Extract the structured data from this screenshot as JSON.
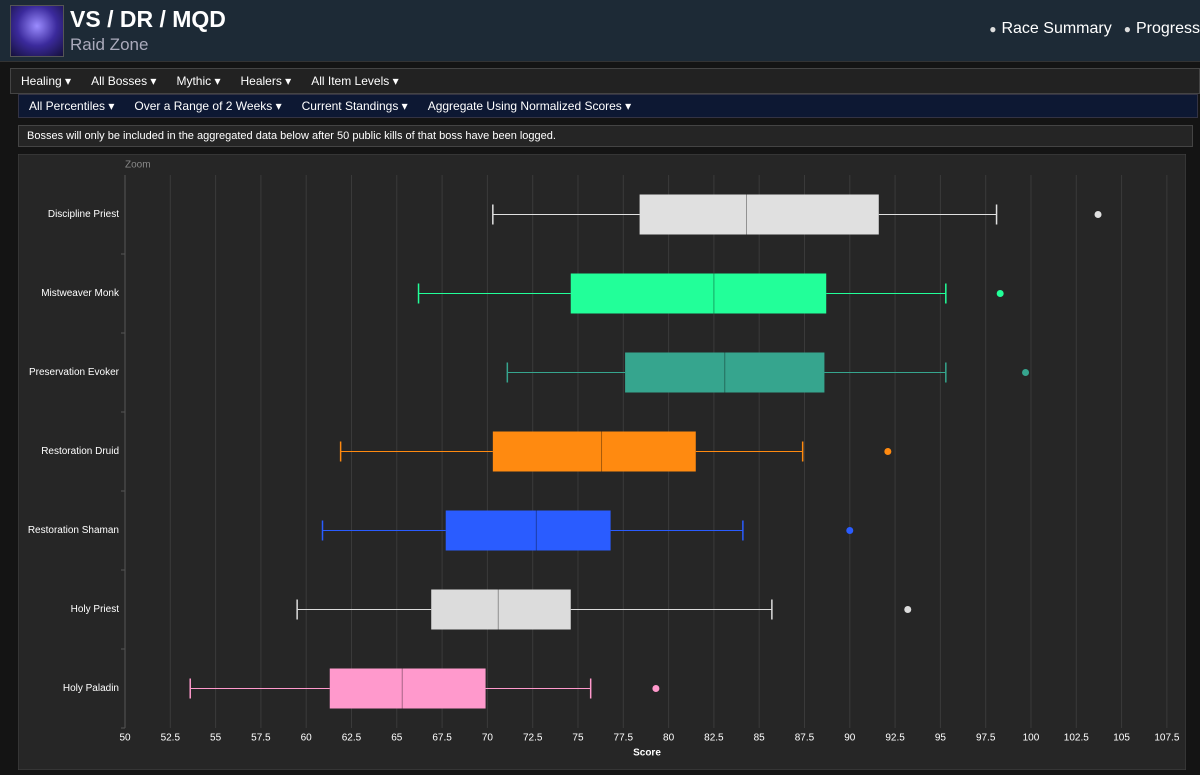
{
  "header": {
    "title": "VS / DR / MQD",
    "subtitle": "Raid Zone",
    "links": [
      "Race Summary",
      "Progress"
    ]
  },
  "filters": [
    "Healing",
    "All Bosses",
    "Mythic",
    "Healers",
    "All Item Levels"
  ],
  "options": [
    "All Percentiles",
    "Over a Range of 2 Weeks",
    "Current Standings",
    "Aggregate Using Normalized Scores"
  ],
  "notice": "Bosses will only be included in the aggregated data below after 50 public kills of that boss have been logged.",
  "chart_data": {
    "type": "box",
    "zoom_label": "Zoom",
    "x_label": "Score",
    "xlim": [
      50,
      108.5
    ],
    "xticks": [
      50,
      52.5,
      55,
      57.5,
      60,
      62.5,
      65,
      67.5,
      70,
      72.5,
      75,
      77.5,
      80,
      82.5,
      85,
      87.5,
      90,
      92.5,
      95,
      97.5,
      100,
      102.5,
      105,
      107.5
    ],
    "grid": true,
    "boxes": [
      {
        "name": "Discipline Priest",
        "color": "#e0e0e0",
        "low": 70.3,
        "q1": 78.4,
        "median": 84.3,
        "q3": 91.6,
        "high": 98.1,
        "outliers": [
          103.7
        ]
      },
      {
        "name": "Mistweaver Monk",
        "color": "#22ff99",
        "low": 66.2,
        "q1": 74.6,
        "median": 82.5,
        "q3": 88.7,
        "high": 95.3,
        "outliers": [
          98.3
        ]
      },
      {
        "name": "Preservation Evoker",
        "color": "#36a58e",
        "low": 71.1,
        "q1": 77.6,
        "median": 83.1,
        "q3": 88.6,
        "high": 95.3,
        "outliers": [
          99.7
        ]
      },
      {
        "name": "Restoration Druid",
        "color": "#ff8a10",
        "low": 61.9,
        "q1": 70.3,
        "median": 76.3,
        "q3": 81.5,
        "high": 87.4,
        "outliers": [
          92.1
        ]
      },
      {
        "name": "Restoration Shaman",
        "color": "#2a5cff",
        "low": 60.9,
        "q1": 67.7,
        "median": 72.7,
        "q3": 76.8,
        "high": 84.1,
        "outliers": [
          90.0
        ]
      },
      {
        "name": "Holy Priest",
        "color": "#dcdcdc",
        "low": 59.5,
        "q1": 66.9,
        "median": 70.6,
        "q3": 74.6,
        "high": 85.7,
        "outliers": [
          93.2
        ]
      },
      {
        "name": "Holy Paladin",
        "color": "#ff99cc",
        "low": 53.6,
        "q1": 61.3,
        "median": 65.3,
        "q3": 69.9,
        "high": 75.7,
        "outliers": [
          79.3
        ]
      }
    ]
  }
}
